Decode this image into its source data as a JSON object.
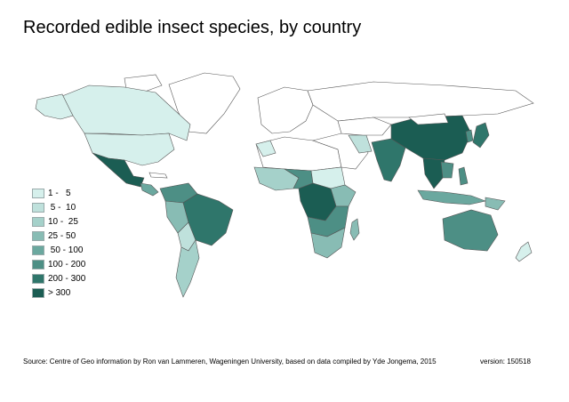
{
  "title": "Recorded edible insect species, by country",
  "legend": [
    {
      "label": "1 -   5",
      "color": "#d6f0ec"
    },
    {
      "label": " 5 -  10",
      "color": "#bfe1dc"
    },
    {
      "label": "10 -  25",
      "color": "#a5d1ca"
    },
    {
      "label": "25 - 50",
      "color": "#88bcb4"
    },
    {
      "label": " 50 - 100",
      "color": "#6ba89f"
    },
    {
      "label": "100 - 200",
      "color": "#4d8f85"
    },
    {
      "label": "200 - 300",
      "color": "#2f766b"
    },
    {
      "label": "> 300",
      "color": "#1b5d53"
    }
  ],
  "source": "Source: Centre of Geo information by Ron van Lammeren, Wageningen University, based on data compiled by Yde Jongema, 2015",
  "version": "version: 150518",
  "colors": {
    "no_data": "#ffffff",
    "border": "#555555"
  }
}
